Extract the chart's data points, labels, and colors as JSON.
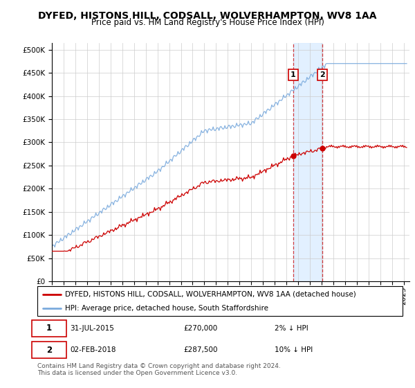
{
  "title": "DYFED, HISTONS HILL, CODSALL, WOLVERHAMPTON, WV8 1AA",
  "subtitle": "Price paid vs. HM Land Registry's House Price Index (HPI)",
  "yticks": [
    0,
    50000,
    100000,
    150000,
    200000,
    250000,
    300000,
    350000,
    400000,
    450000,
    500000
  ],
  "ylim": [
    0,
    515000
  ],
  "xlim_start": 1995.0,
  "xlim_end": 2025.5,
  "sale1_date": 2015.58,
  "sale1_price": 270000,
  "sale1_label": "1",
  "sale1_pct": "2% ↓ HPI",
  "sale1_date_str": "31-JUL-2015",
  "sale2_date": 2018.08,
  "sale2_price": 287500,
  "sale2_label": "2",
  "sale2_pct": "10% ↓ HPI",
  "sale2_date_str": "02-FEB-2018",
  "legend_label1": "DYFED, HISTONS HILL, CODSALL, WOLVERHAMPTON, WV8 1AA (detached house)",
  "legend_label2": "HPI: Average price, detached house, South Staffordshire",
  "footer": "Contains HM Land Registry data © Crown copyright and database right 2024.\nThis data is licensed under the Open Government Licence v3.0.",
  "line_color_sale": "#cc0000",
  "line_color_hpi": "#7aaadd",
  "shade_color": "#ddeeff",
  "box_color": "#cc0000",
  "title_fontsize": 10,
  "subtitle_fontsize": 8.5,
  "tick_fontsize": 7.5,
  "legend_fontsize": 7.5,
  "footer_fontsize": 6.5
}
